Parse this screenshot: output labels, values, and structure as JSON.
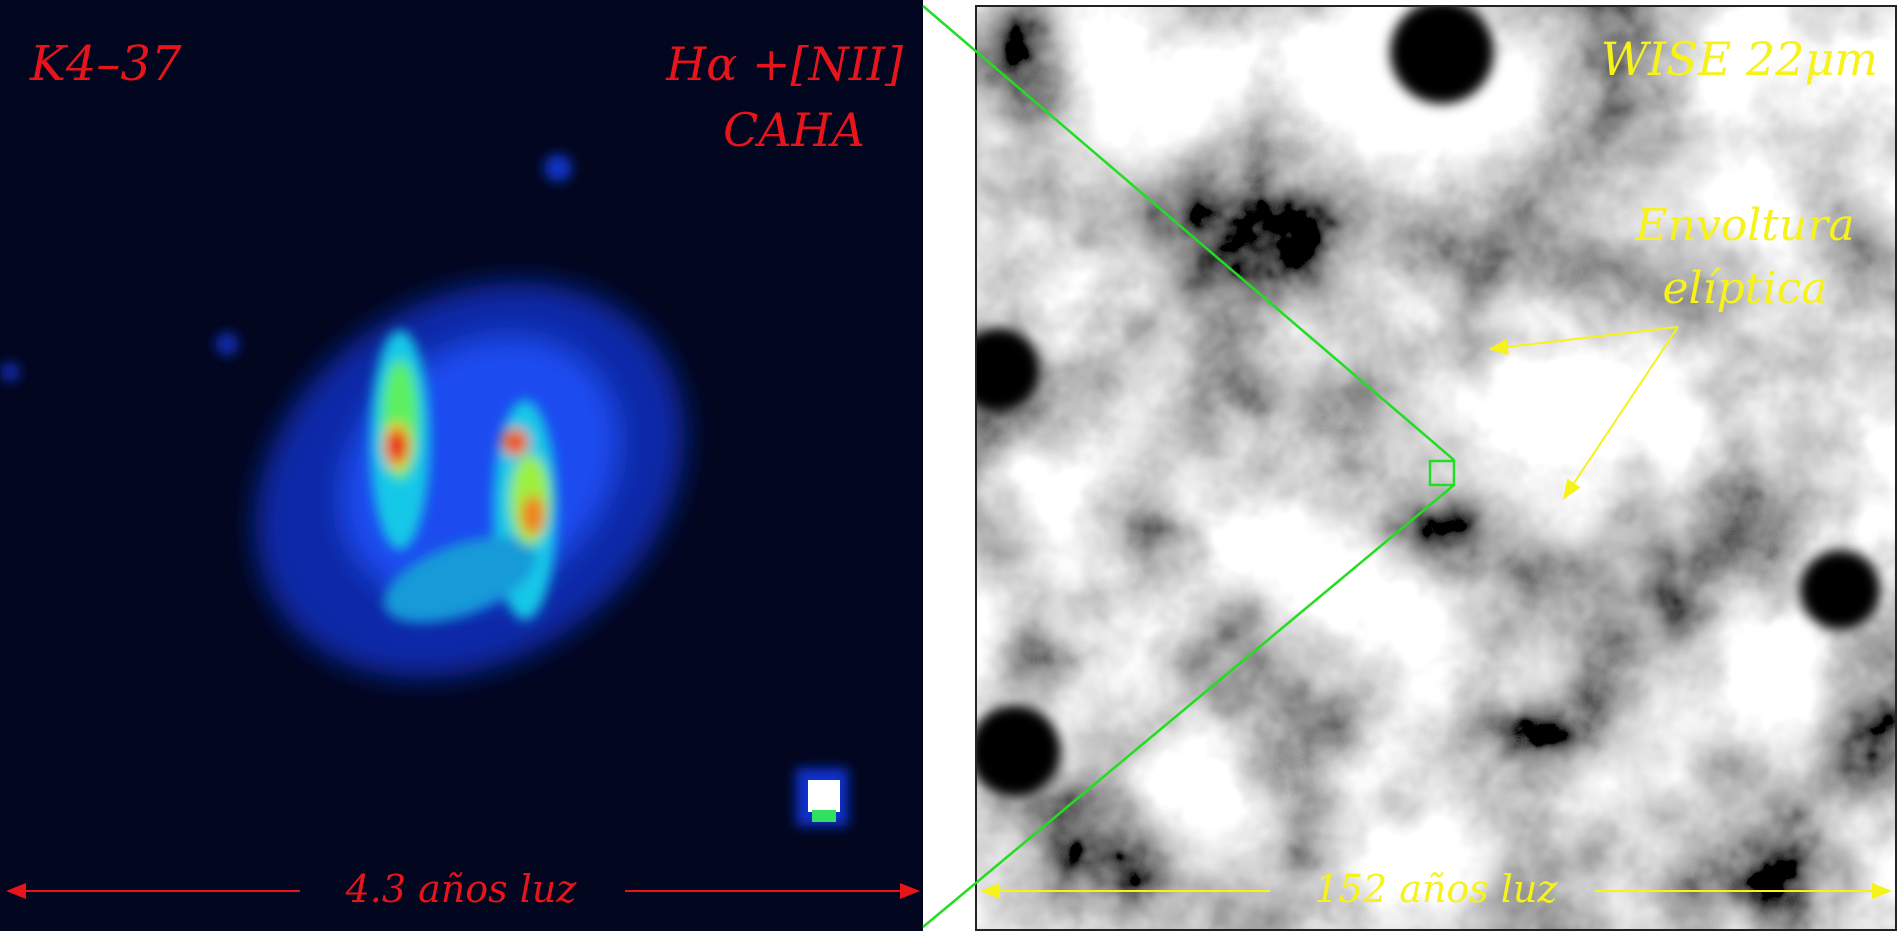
{
  "left_panel": {
    "object": "K4–37",
    "filter_line1": "Hα +[NII]",
    "filter_line2": "CAHA",
    "scale_bar": "4.3 años luz"
  },
  "right_panel": {
    "instrument": "WISE 22μm",
    "annotation_line1": "Envoltura",
    "annotation_line2": "elíptica",
    "scale_bar": "152 años luz"
  }
}
